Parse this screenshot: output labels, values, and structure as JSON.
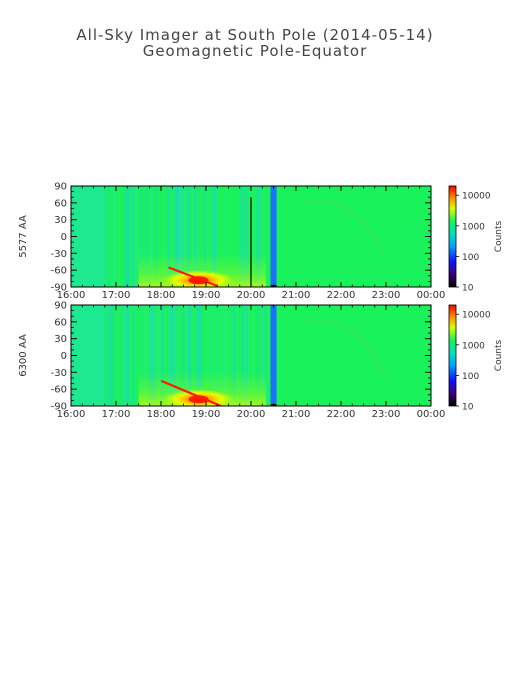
{
  "title": "All-Sky Imager at South Pole (2014-05-14)",
  "subtitle": "Geomagnetic Pole-Equator",
  "chart_data": [
    {
      "type": "heatmap",
      "ylabel": "5577 AA",
      "colorbar_label": "Counts",
      "colorbar_scale": "log",
      "colorbar_range": [
        10,
        20000
      ],
      "colorbar_ticks": [
        "10",
        "100",
        "1000",
        "10000"
      ],
      "x_ticks": [
        "16:00",
        "17:00",
        "18:00",
        "19:00",
        "20:00",
        "21:00",
        "22:00",
        "23:00",
        "00:00"
      ],
      "xlim": [
        "16:00",
        "00:00"
      ],
      "y_ticks": [
        "90",
        "60",
        "30",
        "0",
        "-30",
        "-60",
        "-90"
      ],
      "ylim": [
        -90,
        90
      ],
      "features": {
        "background_counts": 1000,
        "arc_peak_counts": 15000,
        "arc_start": "18:10",
        "arc_end": "19:15",
        "arc_lat_start": -55,
        "arc_lat_end": -88,
        "data_gap_time": "20:30",
        "gap_line_time": "20:00"
      }
    },
    {
      "type": "heatmap",
      "ylabel": "6300 AA",
      "colorbar_label": "Counts",
      "colorbar_scale": "log",
      "colorbar_range": [
        10,
        20000
      ],
      "colorbar_ticks": [
        "10",
        "100",
        "1000",
        "10000"
      ],
      "x_ticks": [
        "16:00",
        "17:00",
        "18:00",
        "19:00",
        "20:00",
        "21:00",
        "22:00",
        "23:00",
        "00:00"
      ],
      "xlim": [
        "16:00",
        "00:00"
      ],
      "y_ticks": [
        "90",
        "60",
        "30",
        "0",
        "-30",
        "-60",
        "-90"
      ],
      "ylim": [
        -90,
        90
      ],
      "features": {
        "background_counts": 1000,
        "arc_peak_counts": 15000,
        "arc_start": "18:00",
        "arc_end": "19:20",
        "arc_lat_start": -45,
        "arc_lat_end": -90,
        "data_gap_time": "20:30"
      }
    }
  ],
  "colors": {
    "background_green": "#19f25a",
    "cyan_bands": "#1fe3b0",
    "gap_blue": "#1f6fff",
    "arc_red": "#ff1a00",
    "arc_orange": "#ffb000",
    "arc_yellow": "#e8ff00"
  }
}
